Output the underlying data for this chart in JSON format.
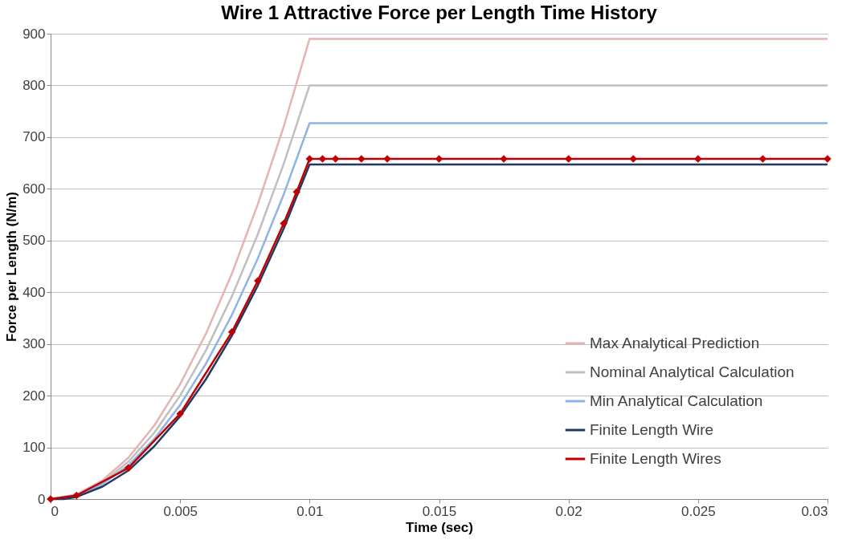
{
  "chart_data": {
    "type": "line",
    "title": "Wire 1 Attractive Force per Length Time History",
    "xlabel": "Time (sec)",
    "ylabel": "Force per Length (N/m)",
    "xlim": [
      0,
      0.03
    ],
    "xticks": [
      0,
      0.005,
      0.01,
      0.015,
      0.02,
      0.025,
      0.03
    ],
    "ylim": [
      0,
      900
    ],
    "yticks": [
      0,
      100,
      200,
      300,
      400,
      500,
      600,
      700,
      800,
      900
    ],
    "grid": "y",
    "legend": "right",
    "line_style": "solid",
    "series": [
      {
        "name": "Max Analytical Prediction",
        "color": "#e6b3b3",
        "x": [
          0,
          0.001,
          0.002,
          0.003,
          0.004,
          0.005,
          0.006,
          0.007,
          0.008,
          0.009,
          0.01,
          0.03
        ],
        "values": [
          0,
          9,
          36,
          80,
          142,
          222,
          320,
          436,
          570,
          720,
          890,
          890
        ]
      },
      {
        "name": "Nominal Analytical Calculation",
        "color": "#bfbfbf",
        "x": [
          0,
          0.001,
          0.002,
          0.003,
          0.004,
          0.005,
          0.006,
          0.007,
          0.008,
          0.009,
          0.01,
          0.03
        ],
        "values": [
          0,
          8,
          32,
          72,
          128,
          200,
          288,
          392,
          512,
          648,
          800,
          800
        ]
      },
      {
        "name": "Min Analytical Calculation",
        "color": "#8db4e2",
        "x": [
          0,
          0.001,
          0.002,
          0.003,
          0.004,
          0.005,
          0.006,
          0.007,
          0.008,
          0.009,
          0.01,
          0.03
        ],
        "values": [
          0,
          7,
          29,
          65,
          116,
          182,
          262,
          356,
          465,
          589,
          727,
          727
        ]
      },
      {
        "name": "Finite Length Wire",
        "color": "#1f3864",
        "x": [
          0,
          0.0005,
          0.001,
          0.002,
          0.003,
          0.004,
          0.005,
          0.006,
          0.007,
          0.008,
          0.009,
          0.01,
          0.03
        ],
        "values": [
          0,
          0,
          4,
          24,
          55,
          102,
          160,
          232,
          316,
          413,
          523,
          647,
          647
        ]
      },
      {
        "name": "Finite Length Wires",
        "color": "#c00000",
        "marker": "diamond",
        "x": [
          0,
          0.001,
          0.003,
          0.005,
          0.007,
          0.008,
          0.009,
          0.0095,
          0.01,
          0.0105,
          0.011,
          0.012,
          0.013,
          0.015,
          0.0175,
          0.02,
          0.0225,
          0.025,
          0.0275,
          0.03
        ],
        "values": [
          0,
          7,
          60,
          165,
          323,
          422,
          533,
          594,
          658,
          658,
          658,
          658,
          658,
          658,
          658,
          658,
          658,
          658,
          658,
          658
        ]
      }
    ]
  }
}
